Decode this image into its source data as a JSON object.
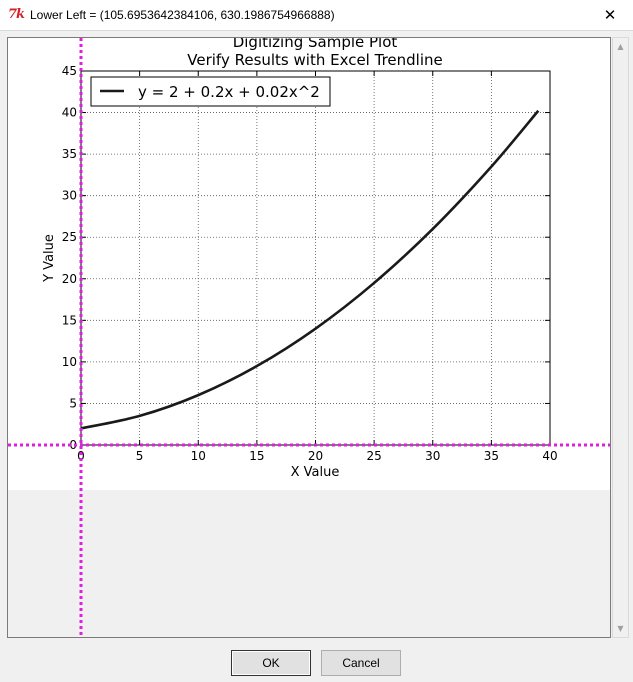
{
  "window": {
    "title": "Lower Left = (105.6953642384106, 630.1986754966888)",
    "icon": "tk-feather-icon",
    "close_label": "✕"
  },
  "chart_data": {
    "type": "line",
    "title": "Digitizing Sample Plot",
    "subtitle": "Verify Results with Excel Trendline",
    "xlabel": "X Value",
    "ylabel": "Y Value",
    "xlim": [
      0,
      40
    ],
    "ylim": [
      0,
      45
    ],
    "x_ticks": [
      0,
      5,
      10,
      15,
      20,
      25,
      30,
      35,
      40
    ],
    "y_ticks": [
      0,
      5,
      10,
      15,
      20,
      25,
      30,
      35,
      40,
      45
    ],
    "grid": true,
    "legend_position": "top-left",
    "series": [
      {
        "name": "y = 2 + 0.2x + 0.02x^2",
        "color": "#1a1a1a",
        "x": [
          0,
          5,
          10,
          15,
          20,
          25,
          30,
          35,
          39
        ],
        "y": [
          2,
          3.5,
          6,
          9.5,
          14,
          19.5,
          26,
          33.5,
          40.22
        ]
      }
    ]
  },
  "crosshair": {
    "color": "#e01ee0",
    "x_value": 0,
    "y_value": 0
  },
  "buttons": {
    "ok_label": "OK",
    "cancel_label": "Cancel"
  },
  "scrollbar": {
    "up_arrow": "▲",
    "down_arrow": "▼"
  }
}
